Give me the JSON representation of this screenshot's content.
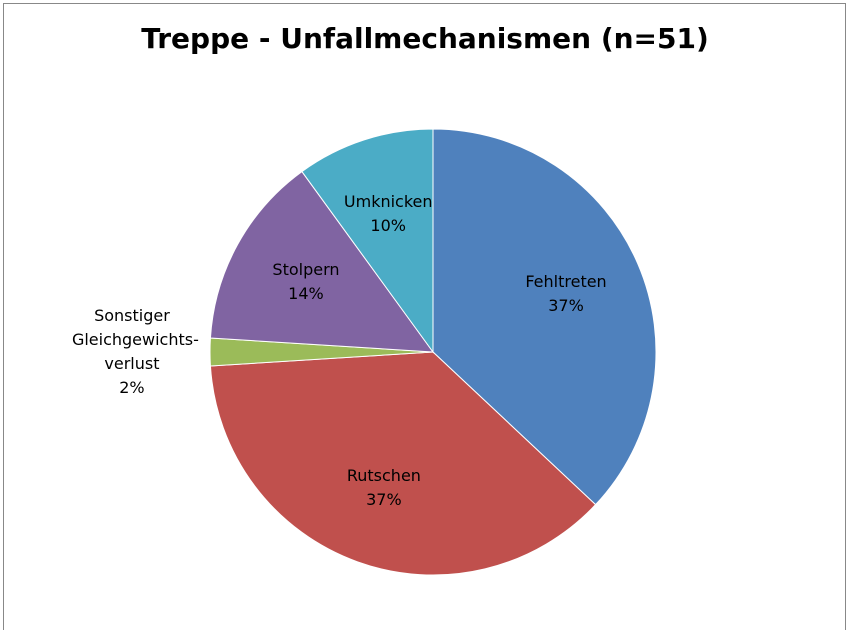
{
  "chart_data": {
    "type": "pie",
    "title": "Treppe - Unfallmechanismen (n=51)",
    "categories": [
      "Fehltreten",
      "Rutschen",
      "Sonstiger Gleichgewichts-verlust",
      "Stolpern",
      "Umknicken"
    ],
    "values": [
      37,
      37,
      2,
      14,
      10
    ],
    "value_labels": [
      "37%",
      "37%",
      "2%",
      "14%",
      "10%"
    ],
    "colors": [
      "#4f81bd",
      "#c0504d",
      "#9bbb59",
      "#8064a2",
      "#4bacc6"
    ]
  }
}
